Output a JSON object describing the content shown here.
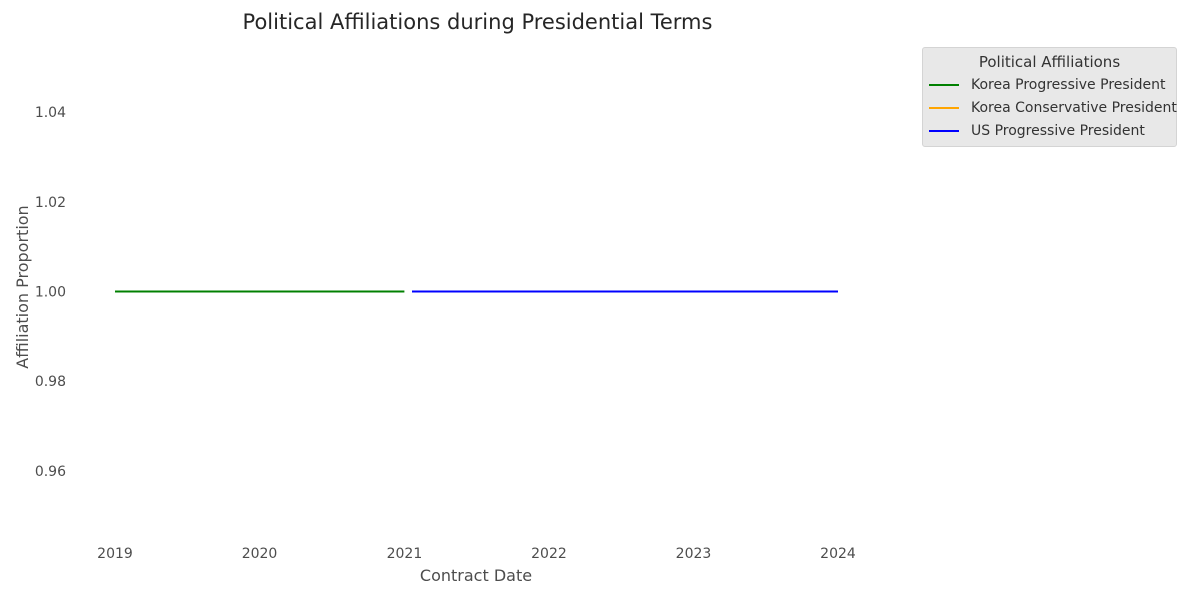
{
  "chart_data": {
    "type": "line",
    "title": "Political Affiliations during Presidential Terms",
    "xlabel": "Contract Date",
    "ylabel": "Affiliation Proportion",
    "x_ticks": [
      "2019",
      "2020",
      "2021",
      "2022",
      "2023",
      "2024"
    ],
    "y_ticks": [
      "0.96",
      "0.98",
      "1.00",
      "1.02",
      "1.04"
    ],
    "xlim": [
      "2019-01-01",
      "2024-01-01"
    ],
    "ylim": [
      0.945,
      1.055
    ],
    "grid": false,
    "legend": {
      "title": "Political Affiliations",
      "placement": "outside-top-right",
      "entries": [
        "Korea Progressive President",
        "Korea Conservative President",
        "US Progressive President"
      ]
    },
    "series": [
      {
        "name": "Korea Progressive President",
        "color": "#008000",
        "x": [
          "2019-01-01",
          "2020-01-01",
          "2021-01-01"
        ],
        "y": [
          1.0,
          1.0,
          1.0
        ]
      },
      {
        "name": "Korea Conservative President",
        "color": "#ffa500",
        "x": [
          "2022-05-10",
          "2023-01-01",
          "2024-01-01"
        ],
        "y": [
          1.0,
          1.0,
          1.0
        ]
      },
      {
        "name": "US Progressive President",
        "color": "#0000ff",
        "x": [
          "2021-01-20",
          "2022-01-01",
          "2023-01-01",
          "2024-01-01"
        ],
        "y": [
          1.0,
          1.0,
          1.0,
          1.0
        ]
      }
    ]
  }
}
